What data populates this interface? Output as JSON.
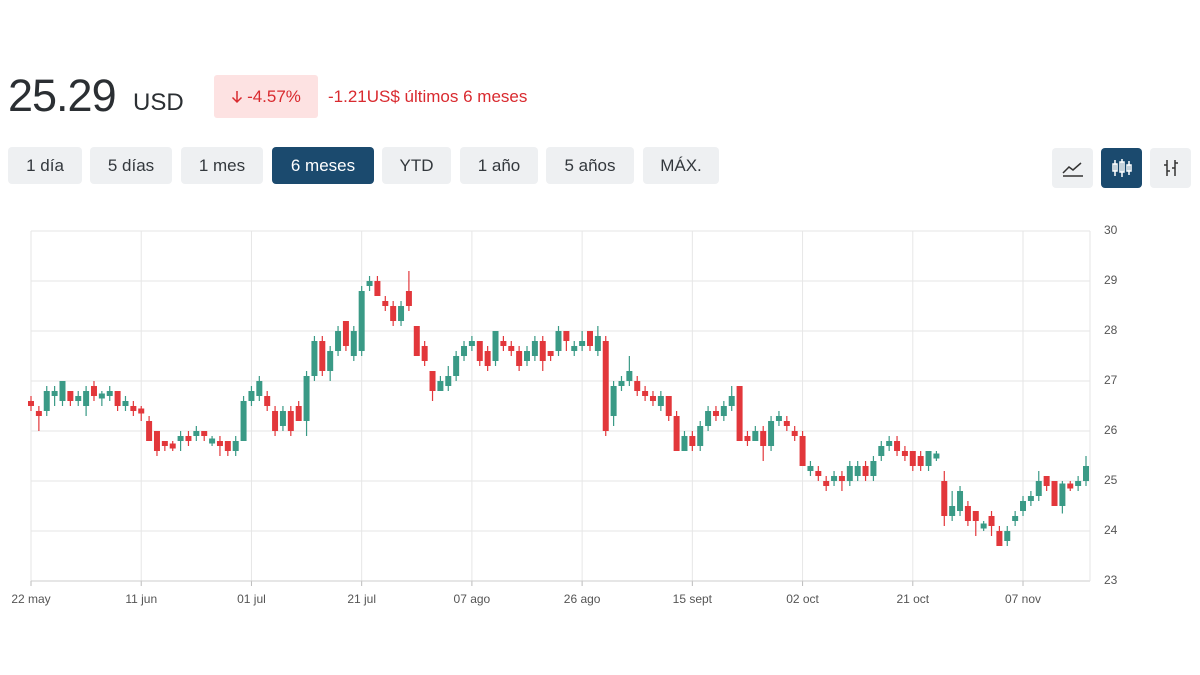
{
  "header": {
    "price": "25.29",
    "currency": "USD",
    "change_pct": "-4.57%",
    "change_text": "-1.21US$ últimos 6 meses"
  },
  "range_buttons": [
    "1 día",
    "5 días",
    "1 mes",
    "6 meses",
    "YTD",
    "1 año",
    "5 años",
    "MÁX."
  ],
  "active_range_button": 3,
  "active_chart_style": 1,
  "chart_data": {
    "type": "candlestick",
    "up_color": "#3a9a86",
    "down_color": "#e2373b",
    "ylim": [
      23,
      30
    ],
    "yticks": [
      23,
      24,
      25,
      26,
      27,
      28,
      29,
      30
    ],
    "grid": true,
    "categories": [
      "22 may",
      null,
      null,
      null,
      null,
      null,
      null,
      null,
      null,
      null,
      null,
      null,
      null,
      null,
      "11 jun",
      null,
      null,
      null,
      null,
      null,
      null,
      null,
      null,
      null,
      null,
      null,
      null,
      null,
      "01 jul",
      null,
      null,
      null,
      null,
      null,
      null,
      null,
      null,
      null,
      null,
      null,
      null,
      null,
      "21 jul",
      null,
      null,
      null,
      null,
      null,
      null,
      null,
      null,
      null,
      null,
      null,
      null,
      null,
      "07 ago",
      null,
      null,
      null,
      null,
      null,
      null,
      null,
      null,
      null,
      null,
      null,
      null,
      null,
      "26 ago",
      null,
      null,
      null,
      null,
      null,
      null,
      null,
      null,
      null,
      null,
      null,
      null,
      null,
      "15 sept",
      null,
      null,
      null,
      null,
      null,
      null,
      null,
      null,
      null,
      null,
      null,
      null,
      null,
      "02 oct",
      null,
      null,
      null,
      null,
      null,
      null,
      null,
      null,
      null,
      null,
      null,
      null,
      null,
      "21 oct",
      null,
      null,
      null,
      null,
      null,
      null,
      null,
      null,
      null,
      null,
      null,
      null,
      null,
      "07 nov",
      null,
      null,
      null,
      null,
      null,
      null,
      null,
      null
    ],
    "ohlc": [
      [
        26.6,
        26.7,
        26.4,
        26.5
      ],
      [
        26.4,
        26.5,
        26.0,
        26.3
      ],
      [
        26.4,
        26.9,
        26.3,
        26.8
      ],
      [
        26.7,
        26.9,
        26.5,
        26.8
      ],
      [
        26.6,
        27.0,
        26.5,
        27.0
      ],
      [
        26.8,
        26.8,
        26.5,
        26.6
      ],
      [
        26.6,
        26.8,
        26.5,
        26.7
      ],
      [
        26.5,
        26.9,
        26.3,
        26.8
      ],
      [
        26.9,
        27.0,
        26.6,
        26.7
      ],
      [
        26.65,
        26.8,
        26.5,
        26.75
      ],
      [
        26.7,
        26.9,
        26.6,
        26.8
      ],
      [
        26.8,
        26.8,
        26.4,
        26.5
      ],
      [
        26.5,
        26.7,
        26.4,
        26.6
      ],
      [
        26.5,
        26.6,
        26.3,
        26.4
      ],
      [
        26.45,
        26.5,
        26.2,
        26.35
      ],
      [
        26.2,
        26.3,
        25.8,
        25.8
      ],
      [
        26.0,
        26.0,
        25.5,
        25.6
      ],
      [
        25.8,
        25.8,
        25.6,
        25.7
      ],
      [
        25.75,
        25.8,
        25.6,
        25.65
      ],
      [
        25.8,
        26.0,
        25.6,
        25.9
      ],
      [
        25.9,
        26.0,
        25.7,
        25.8
      ],
      [
        25.9,
        26.1,
        25.8,
        26.0
      ],
      [
        26.0,
        26.0,
        25.8,
        25.9
      ],
      [
        25.75,
        25.9,
        25.7,
        25.85
      ],
      [
        25.8,
        25.9,
        25.5,
        25.7
      ],
      [
        25.8,
        25.8,
        25.5,
        25.6
      ],
      [
        25.6,
        25.9,
        25.5,
        25.8
      ],
      [
        25.8,
        26.7,
        25.8,
        26.6
      ],
      [
        26.6,
        26.9,
        26.5,
        26.8
      ],
      [
        26.7,
        27.1,
        26.6,
        27.0
      ],
      [
        26.7,
        26.8,
        26.4,
        26.5
      ],
      [
        26.4,
        26.5,
        25.9,
        26.0
      ],
      [
        26.1,
        26.5,
        26.0,
        26.4
      ],
      [
        26.4,
        26.5,
        25.9,
        26.0
      ],
      [
        26.5,
        26.6,
        26.2,
        26.2
      ],
      [
        26.2,
        27.2,
        25.9,
        27.1
      ],
      [
        27.1,
        27.9,
        27.0,
        27.8
      ],
      [
        27.8,
        27.9,
        27.1,
        27.2
      ],
      [
        27.2,
        27.7,
        27.0,
        27.6
      ],
      [
        27.6,
        28.1,
        27.5,
        28.0
      ],
      [
        28.2,
        28.2,
        27.6,
        27.7
      ],
      [
        27.5,
        28.1,
        27.4,
        28.0
      ],
      [
        27.6,
        28.9,
        27.5,
        28.8
      ],
      [
        28.9,
        29.1,
        28.8,
        29.0
      ],
      [
        29.0,
        29.1,
        28.7,
        28.7
      ],
      [
        28.6,
        28.7,
        28.4,
        28.5
      ],
      [
        28.5,
        28.6,
        28.1,
        28.2
      ],
      [
        28.2,
        28.6,
        28.1,
        28.5
      ],
      [
        28.8,
        29.2,
        28.4,
        28.5
      ],
      [
        28.1,
        28.1,
        27.5,
        27.5
      ],
      [
        27.7,
        27.8,
        27.3,
        27.4
      ],
      [
        27.2,
        27.2,
        26.6,
        26.8
      ],
      [
        26.8,
        27.1,
        26.8,
        27.0
      ],
      [
        26.9,
        27.3,
        26.8,
        27.1
      ],
      [
        27.1,
        27.6,
        27.0,
        27.5
      ],
      [
        27.5,
        27.8,
        27.4,
        27.7
      ],
      [
        27.7,
        27.9,
        27.6,
        27.8
      ],
      [
        27.8,
        27.8,
        27.3,
        27.4
      ],
      [
        27.6,
        27.7,
        27.2,
        27.3
      ],
      [
        27.4,
        28.0,
        27.3,
        28.0
      ],
      [
        27.8,
        27.9,
        27.6,
        27.7
      ],
      [
        27.7,
        27.8,
        27.5,
        27.6
      ],
      [
        27.6,
        27.7,
        27.2,
        27.3
      ],
      [
        27.4,
        27.7,
        27.3,
        27.6
      ],
      [
        27.5,
        27.9,
        27.4,
        27.8
      ],
      [
        27.8,
        27.9,
        27.2,
        27.4
      ],
      [
        27.6,
        27.6,
        27.4,
        27.5
      ],
      [
        27.6,
        28.1,
        27.5,
        28.0
      ],
      [
        28.0,
        28.0,
        27.6,
        27.8
      ],
      [
        27.6,
        27.8,
        27.5,
        27.7
      ],
      [
        27.7,
        28.0,
        27.6,
        27.8
      ],
      [
        28.0,
        28.0,
        27.6,
        27.7
      ],
      [
        27.6,
        28.1,
        27.5,
        27.9
      ],
      [
        27.8,
        27.9,
        25.9,
        26.0
      ],
      [
        26.3,
        27.0,
        26.1,
        26.9
      ],
      [
        26.9,
        27.1,
        26.8,
        27.0
      ],
      [
        27.0,
        27.5,
        26.9,
        27.2
      ],
      [
        27.0,
        27.1,
        26.7,
        26.8
      ],
      [
        26.8,
        26.9,
        26.6,
        26.7
      ],
      [
        26.7,
        26.8,
        26.5,
        26.6
      ],
      [
        26.5,
        26.8,
        26.4,
        26.7
      ],
      [
        26.7,
        26.7,
        26.2,
        26.3
      ],
      [
        26.3,
        26.4,
        25.6,
        25.6
      ],
      [
        25.6,
        26.0,
        25.6,
        25.9
      ],
      [
        25.9,
        26.0,
        25.6,
        25.7
      ],
      [
        25.7,
        26.2,
        25.6,
        26.1
      ],
      [
        26.1,
        26.5,
        26.0,
        26.4
      ],
      [
        26.4,
        26.5,
        26.2,
        26.3
      ],
      [
        26.3,
        26.6,
        26.2,
        26.5
      ],
      [
        26.5,
        26.9,
        26.4,
        26.7
      ],
      [
        26.9,
        26.9,
        25.8,
        25.8
      ],
      [
        25.9,
        26.0,
        25.7,
        25.8
      ],
      [
        25.8,
        26.1,
        25.8,
        26.0
      ],
      [
        26.0,
        26.1,
        25.4,
        25.7
      ],
      [
        25.7,
        26.3,
        25.6,
        26.2
      ],
      [
        26.2,
        26.4,
        26.1,
        26.3
      ],
      [
        26.2,
        26.3,
        26.0,
        26.1
      ],
      [
        26.0,
        26.1,
        25.8,
        25.9
      ],
      [
        25.9,
        26.0,
        25.3,
        25.3
      ],
      [
        25.2,
        25.4,
        25.1,
        25.3
      ],
      [
        25.2,
        25.3,
        25.0,
        25.1
      ],
      [
        25.0,
        25.1,
        24.8,
        24.9
      ],
      [
        25.0,
        25.2,
        24.9,
        25.1
      ],
      [
        25.1,
        25.2,
        24.8,
        25.0
      ],
      [
        25.0,
        25.4,
        24.9,
        25.3
      ],
      [
        25.1,
        25.4,
        25.0,
        25.3
      ],
      [
        25.3,
        25.4,
        25.0,
        25.1
      ],
      [
        25.1,
        25.5,
        25.0,
        25.4
      ],
      [
        25.5,
        25.8,
        25.4,
        25.7
      ],
      [
        25.7,
        25.9,
        25.6,
        25.8
      ],
      [
        25.8,
        25.9,
        25.5,
        25.6
      ],
      [
        25.6,
        25.7,
        25.4,
        25.5
      ],
      [
        25.6,
        25.6,
        25.2,
        25.3
      ],
      [
        25.5,
        25.6,
        25.2,
        25.3
      ],
      [
        25.3,
        25.6,
        25.2,
        25.6
      ],
      [
        25.45,
        25.6,
        25.4,
        25.55
      ],
      [
        25.0,
        25.2,
        24.1,
        24.3
      ],
      [
        24.3,
        24.8,
        24.2,
        24.5
      ],
      [
        24.4,
        24.9,
        24.3,
        24.8
      ],
      [
        24.5,
        24.6,
        24.1,
        24.2
      ],
      [
        24.4,
        24.4,
        23.9,
        24.2
      ],
      [
        24.05,
        24.2,
        24.0,
        24.15
      ],
      [
        24.3,
        24.4,
        23.9,
        24.1
      ],
      [
        24.0,
        24.1,
        23.7,
        23.7
      ],
      [
        23.8,
        24.1,
        23.7,
        24.0
      ],
      [
        24.2,
        24.4,
        24.1,
        24.3
      ],
      [
        24.4,
        24.7,
        24.3,
        24.6
      ],
      [
        24.6,
        24.8,
        24.5,
        24.7
      ],
      [
        24.7,
        25.2,
        24.6,
        25.0
      ],
      [
        25.1,
        25.1,
        24.8,
        24.9
      ],
      [
        25.0,
        25.0,
        24.5,
        24.5
      ],
      [
        24.5,
        25.0,
        24.35,
        24.95
      ],
      [
        24.95,
        25.0,
        24.8,
        24.85
      ],
      [
        24.9,
        25.1,
        24.8,
        25.0
      ],
      [
        25.0,
        25.5,
        24.9,
        25.3
      ]
    ]
  }
}
